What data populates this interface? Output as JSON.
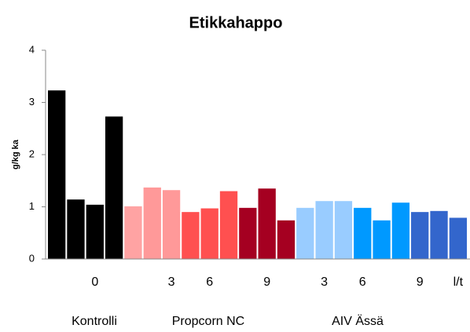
{
  "chart_data": {
    "type": "bar",
    "title": "Etikkahappo",
    "y_label": "g/kg ka",
    "categories": [
      null,
      null,
      "0",
      null,
      null,
      null,
      "3",
      null,
      "6",
      null,
      null,
      "9",
      null,
      null,
      "3",
      null,
      "6",
      null,
      null,
      "9",
      null,
      "l/t"
    ],
    "values": [
      3.23,
      1.14,
      1.04,
      2.73,
      1.01,
      1.37,
      1.32,
      0.9,
      0.97,
      1.3,
      0.98,
      1.35,
      0.74,
      0.98,
      1.11,
      1.11,
      0.98,
      0.74,
      1.08,
      0.9,
      0.92,
      0.79
    ],
    "colors": [
      "#000000",
      "#000000",
      "#000000",
      "#000000",
      "#ffa3a3",
      "#ff9999",
      "#ff9999",
      "#ff5050",
      "#ff5050",
      "#ff5050",
      "#a50021",
      "#a50021",
      "#a50021",
      "#99ccff",
      "#99ccff",
      "#99ccff",
      "#0099ff",
      "#0099ff",
      "#0099ff",
      "#3366cc",
      "#3366cc",
      "#3366cc"
    ],
    "group_labels": [
      "Kontrolli",
      "Propcorn NC",
      "AIV Ässä"
    ],
    "ylim": [
      0,
      4
    ],
    "yticks": [
      0,
      1,
      2,
      3,
      4
    ],
    "grid": false
  }
}
